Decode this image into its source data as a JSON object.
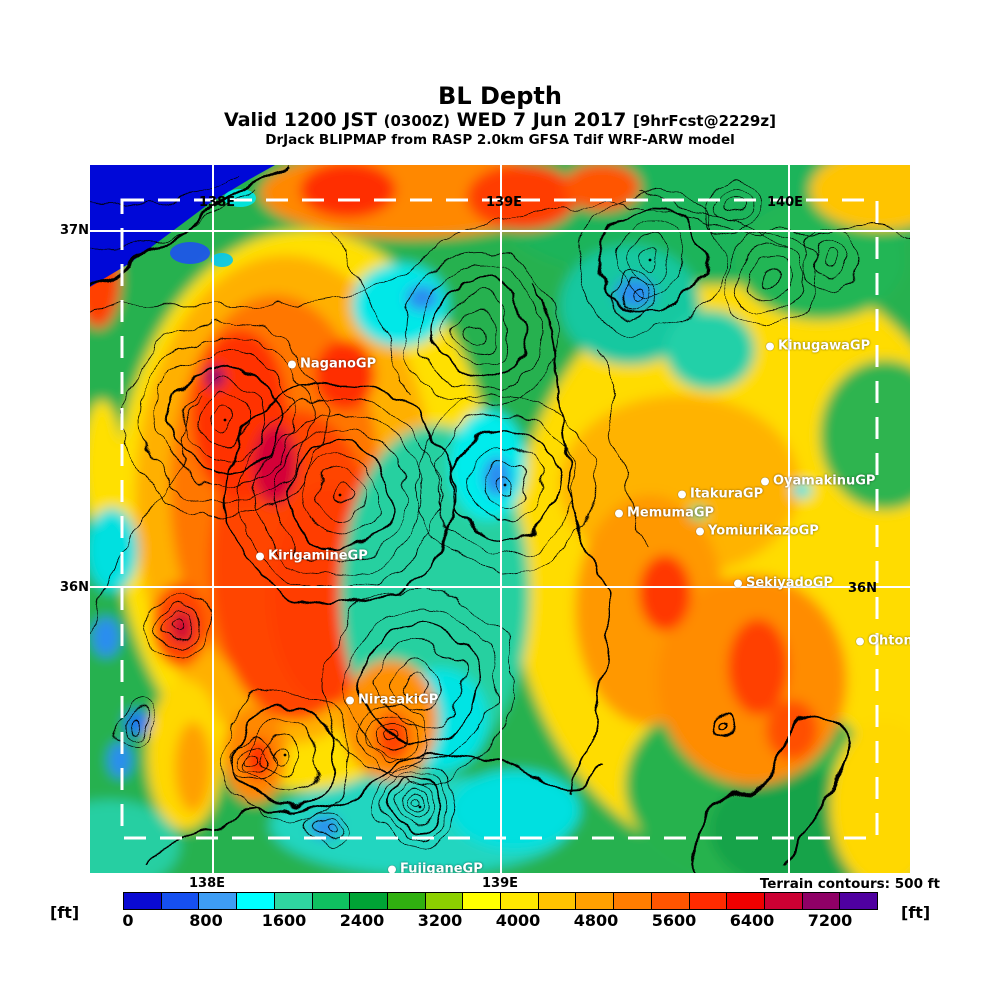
{
  "header": {
    "title": "BL Depth",
    "valid_line": {
      "part1": "Valid 1200 JST",
      "zulu": "(0300Z)",
      "part2": "WED 7 Jun 2017",
      "fcst": "[9hrFcst@2229z]"
    },
    "model_line": "DrJack BLIPMAP from RASP 2.0km GFSA Tdif WRF-ARW model"
  },
  "map": {
    "top_lon_labels": [
      "138E",
      "139E",
      "140E"
    ],
    "bottom_lon_labels": [
      "138E",
      "139E"
    ],
    "lat_labels_left": [
      "37N",
      "36N"
    ],
    "lat_label_right": "36N",
    "sites": [
      {
        "label": "NaganoGP"
      },
      {
        "label": "KirigamineGP"
      },
      {
        "label": "KinugawaGP"
      },
      {
        "label": "OyamakinuGP"
      },
      {
        "label": "ItakuraGP"
      },
      {
        "label": "MemumaGP"
      },
      {
        "label": "YomiuriKazoGP"
      },
      {
        "label": "SekiyadoGP"
      },
      {
        "label": "OhtoneGP"
      },
      {
        "label": "NirasakiGP"
      },
      {
        "label": "FujiganeGP"
      }
    ]
  },
  "footer": {
    "terrain_note": "Terrain contours: 500 ft",
    "unit_left": "[ft]",
    "unit_right": "[ft]"
  },
  "colorbar": {
    "tick_labels": [
      "0",
      "800",
      "1600",
      "2400",
      "3200",
      "4000",
      "4800",
      "5600",
      "6400",
      "7200"
    ],
    "segment_colors": [
      "#0a0ad2",
      "#1650f0",
      "#3e9df5",
      "#00ffff",
      "#2fd6a0",
      "#0fc060",
      "#00a335",
      "#30b010",
      "#8cd000",
      "#ffff00",
      "#ffe800",
      "#ffc400",
      "#ffa000",
      "#ff7d00",
      "#ff5500",
      "#ff2b00",
      "#f00000",
      "#cc0033",
      "#8f0066",
      "#4f00a0"
    ],
    "scale_min_ft": 0,
    "scale_max_ft": 8000,
    "segment_step_ft": 400
  }
}
